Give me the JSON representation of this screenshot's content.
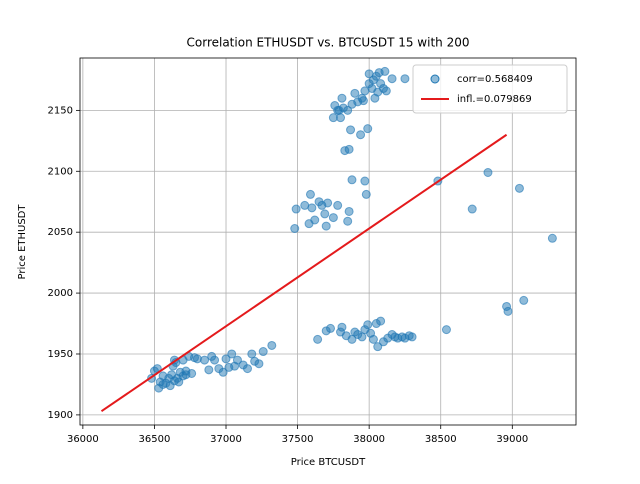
{
  "chart_data": {
    "type": "scatter",
    "title": "Correlation ETHUSDT vs. BTCUSDT 15 with 200",
    "xlabel": "Price BTCUSDT",
    "ylabel": "Price ETHUSDT",
    "xlim": [
      35980,
      39445
    ],
    "ylim": [
      1891.7,
      2193
    ],
    "xticks": [
      36000,
      36500,
      37000,
      37500,
      38000,
      38500,
      39000
    ],
    "yticks": [
      1900,
      1950,
      2000,
      2050,
      2100,
      2150
    ],
    "grid": true,
    "legend": "upper right",
    "series": [
      {
        "name": "corr=0.568409",
        "type": "scatter",
        "color": "#1f77b4",
        "x": [
          36480,
          36500,
          36520,
          36530,
          36540,
          36560,
          36580,
          36600,
          36610,
          36620,
          36630,
          36640,
          36650,
          36660,
          36680,
          36700,
          36700,
          36720,
          36740,
          36760,
          36780,
          36800,
          36850,
          36880,
          36900,
          36920,
          36950,
          36980,
          37000,
          37020,
          37040,
          37060,
          37080,
          37120,
          37150,
          37180,
          37200,
          37230,
          37260,
          37320,
          36640,
          36670,
          36560,
          36720,
          37480,
          37490,
          37550,
          37580,
          37590,
          37600,
          37620,
          37650,
          37670,
          37690,
          37700,
          37710,
          37750,
          37780,
          37850,
          37860,
          37880,
          37970,
          37980,
          37750,
          37760,
          37790,
          37800,
          37810,
          37820,
          37830,
          37850,
          37860,
          37870,
          37880,
          37900,
          37920,
          37940,
          37950,
          37970,
          37990,
          38000,
          38000,
          38020,
          38040,
          38050,
          38060,
          38070,
          38080,
          38100,
          38110,
          38120,
          38160,
          38250,
          37780,
          37960,
          38030,
          37640,
          37700,
          37730,
          37800,
          37810,
          37840,
          37880,
          37900,
          37920,
          37950,
          37970,
          37990,
          38010,
          38030,
          38050,
          38060,
          38080,
          38100,
          38130,
          38160,
          38180,
          38200,
          38230,
          38250,
          38280,
          38300,
          38480,
          38540,
          38720,
          38830,
          38960,
          38970,
          39050,
          39080,
          39280
        ],
        "y": [
          1930,
          1936,
          1938,
          1922,
          1927,
          1932,
          1926,
          1930,
          1924,
          1933,
          1940,
          1928,
          1943,
          1930,
          1935,
          1932,
          1945,
          1936,
          1948,
          1934,
          1947,
          1946,
          1945,
          1937,
          1948,
          1945,
          1938,
          1935,
          1946,
          1939,
          1950,
          1940,
          1945,
          1941,
          1938,
          1950,
          1944,
          1942,
          1952,
          1957,
          1945,
          1927,
          1925,
          1933,
          2053,
          2069,
          2072,
          2057,
          2081,
          2070,
          2060,
          2075,
          2072,
          2065,
          2055,
          2074,
          2062,
          2072,
          2059,
          2067,
          2093,
          2092,
          2081,
          2144,
          2154,
          2150,
          2144,
          2160,
          2152,
          2117,
          2150,
          2118,
          2134,
          2155,
          2164,
          2157,
          2130,
          2160,
          2166,
          2135,
          2180,
          2172,
          2168,
          2160,
          2178,
          2165,
          2181,
          2172,
          2168,
          2182,
          2166,
          2176,
          2176,
          2150,
          2158,
          2175,
          1962,
          1969,
          1971,
          1968,
          1972,
          1965,
          1962,
          1968,
          1966,
          1964,
          1970,
          1974,
          1967,
          1962,
          1975,
          1956,
          1977,
          1960,
          1963,
          1966,
          1964,
          1963,
          1964,
          1963,
          1965,
          1964,
          2092,
          1970,
          2069,
          2099,
          1989,
          1985,
          2086,
          1994,
          2045
        ]
      },
      {
        "name": "infl.=0.079869",
        "type": "line",
        "color": "#e41a1c",
        "x": [
          36130,
          38960
        ],
        "y": [
          1903,
          2130
        ]
      }
    ]
  }
}
